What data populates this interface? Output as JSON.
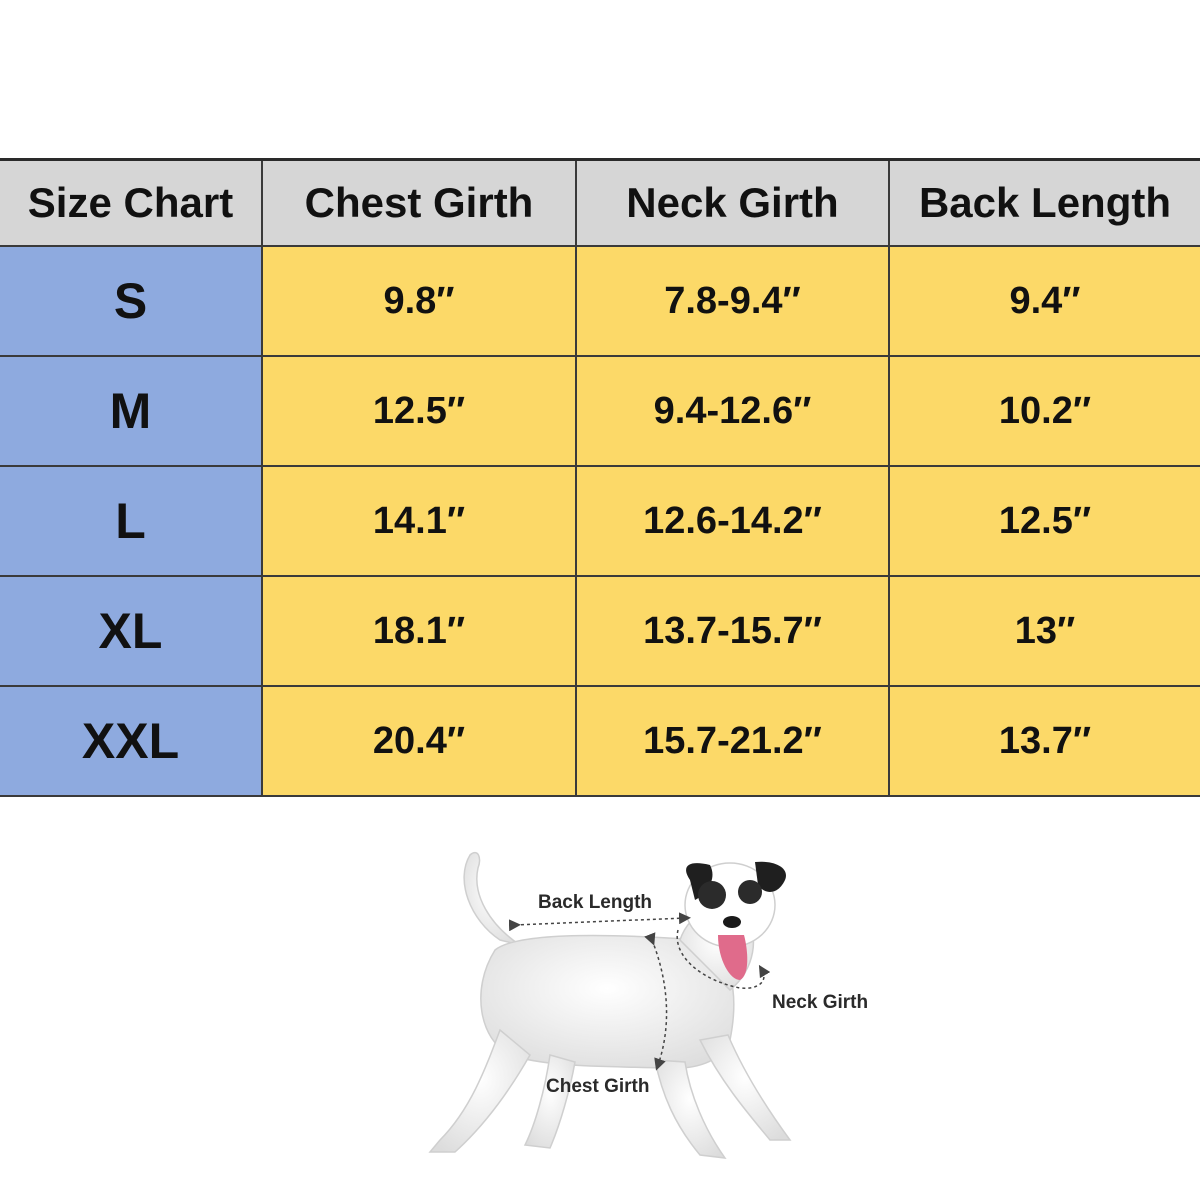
{
  "table": {
    "headers": [
      "Size Chart",
      "Chest Girth",
      "Neck Girth",
      "Back Length"
    ],
    "rows": [
      {
        "size": "S",
        "chest": "9.8″",
        "neck": "7.8-9.4″",
        "back": "9.4″"
      },
      {
        "size": "M",
        "chest": "12.5″",
        "neck": "9.4-12.6″",
        "back": "10.2″"
      },
      {
        "size": "L",
        "chest": "14.1″",
        "neck": "12.6-14.2″",
        "back": "12.5″"
      },
      {
        "size": "XL",
        "chest": "18.1″",
        "neck": "13.7-15.7″",
        "back": "13″"
      },
      {
        "size": "XXL",
        "chest": "20.4″",
        "neck": "15.7-21.2″",
        "back": "13.7″"
      }
    ]
  },
  "diagram": {
    "back_label": "Back Length",
    "neck_label": "Neck Girth",
    "chest_label": "Chest Girth"
  },
  "colors": {
    "header_bg": "#d6d6d6",
    "size_bg": "#8eaadf",
    "value_bg": "#fcd968",
    "border": "#3a3a3a"
  }
}
